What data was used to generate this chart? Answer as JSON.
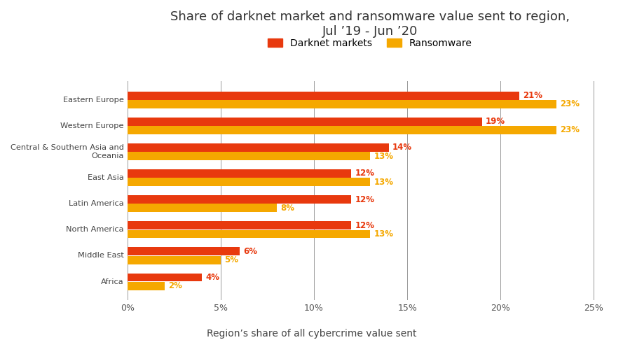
{
  "title": "Share of darknet market and ransomware value sent to region,\nJul ’19 - Jun ’20",
  "xlabel": "Region’s share of all cybercrime value sent",
  "categories": [
    "Eastern Europe",
    "Western Europe",
    "Central & Southern Asia and\nOceania",
    "East Asia",
    "Latin America",
    "North America",
    "Middle East",
    "Africa"
  ],
  "darknet": [
    21,
    19,
    14,
    12,
    12,
    12,
    6,
    4
  ],
  "ransomware": [
    23,
    23,
    13,
    13,
    8,
    13,
    5,
    2
  ],
  "darknet_color": "#E8390E",
  "ransomware_color": "#F5A800",
  "darknet_label": "Darknet markets",
  "ransomware_label": "Ransomware",
  "xlim": [
    0,
    26
  ],
  "xticks": [
    0,
    5,
    10,
    15,
    20,
    25
  ],
  "xticklabels": [
    "0%",
    "5%",
    "10%",
    "15%",
    "20%",
    "25%"
  ],
  "background_color": "#ffffff",
  "title_fontsize": 13,
  "bar_height": 0.32,
  "bar_gap": 0.01
}
